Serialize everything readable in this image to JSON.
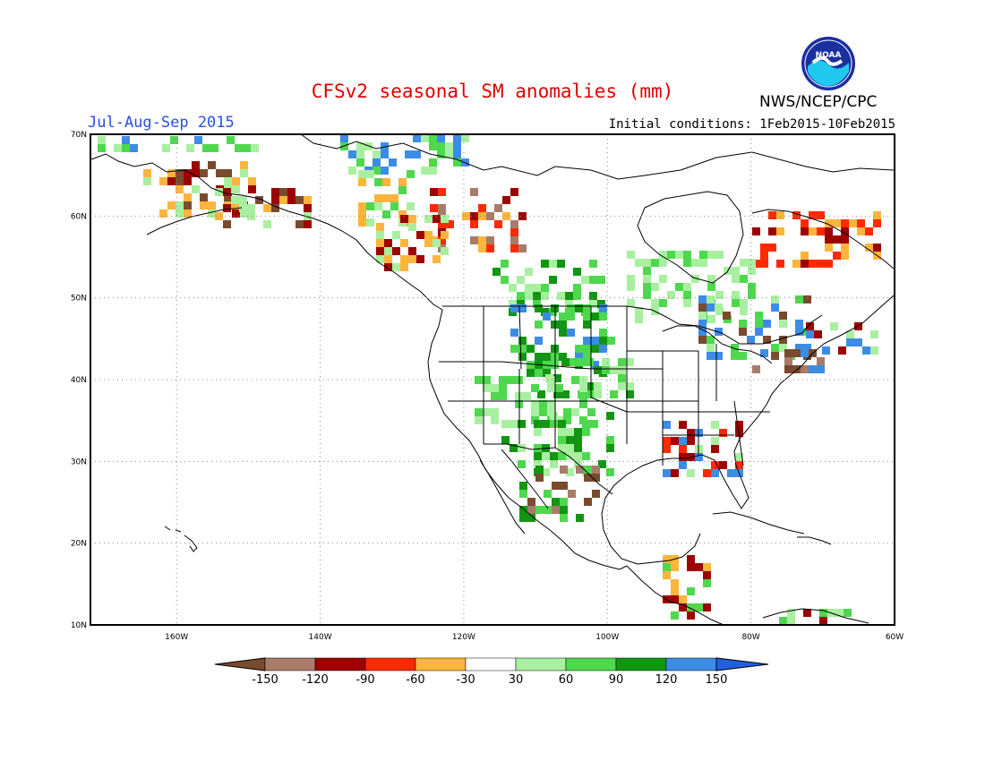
{
  "header": {
    "title": "CFSv2 seasonal SM anomalies (mm)",
    "period": "Jul-Aug-Sep 2015",
    "initial_conditions": "Initial conditions: 1Feb2015-10Feb2015",
    "agency": "NWS/NCEP/CPC",
    "logo_text": "NOAA"
  },
  "map": {
    "lon_range": [
      -172,
      -60
    ],
    "lat_range": [
      10,
      70
    ],
    "lat_labels": [
      "70N",
      "60N",
      "50N",
      "40N",
      "30N",
      "20N",
      "10N"
    ],
    "lon_labels": [
      "160W",
      "140W",
      "120W",
      "100W",
      "80W",
      "60W"
    ]
  },
  "legend": {
    "labels": [
      "-150",
      "-120",
      "-90",
      "-60",
      "-30",
      "30",
      "60",
      "90",
      "120",
      "150"
    ],
    "colors": [
      "#7a4a2e",
      "#a87b6a",
      "#9e0000",
      "#ff2a00",
      "#ffb43c",
      "#ffffff",
      "#a8f0a0",
      "#4ed84e",
      "#129612",
      "#3c8ce6",
      "#2060e0"
    ]
  }
}
